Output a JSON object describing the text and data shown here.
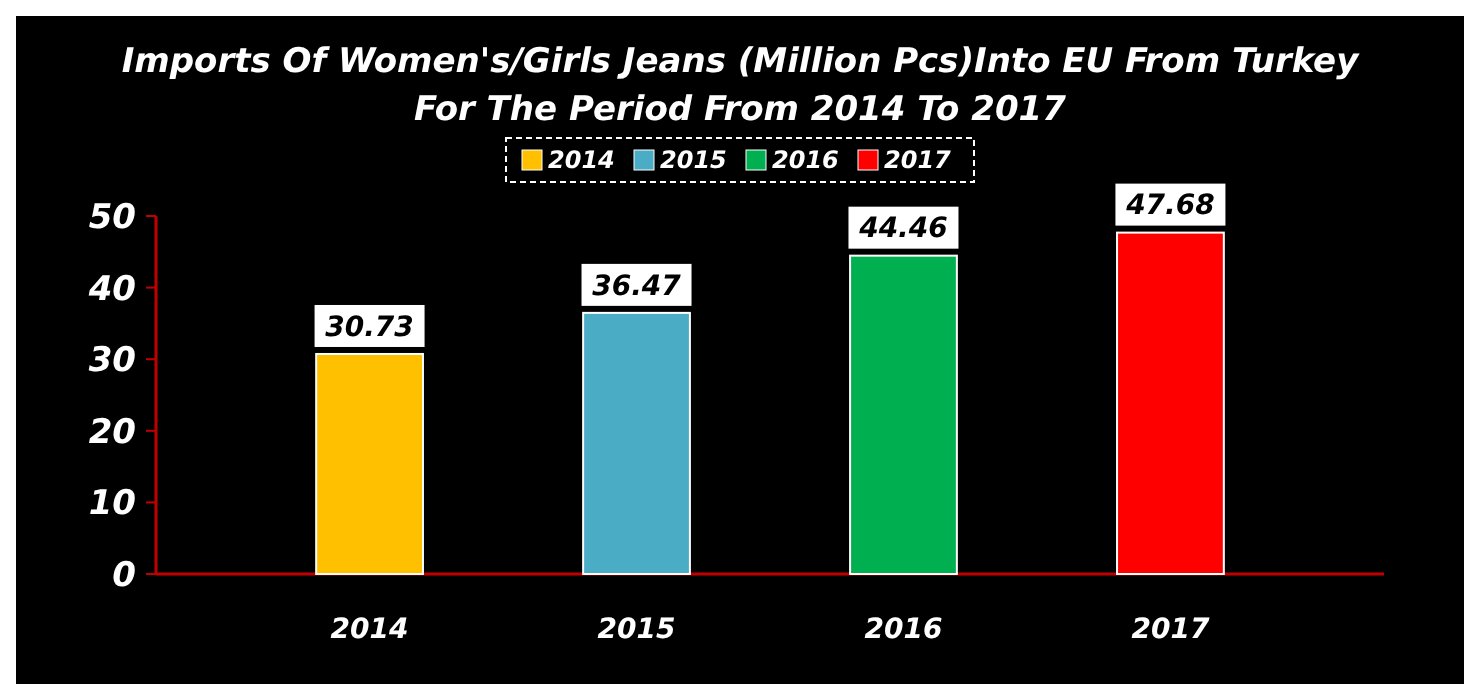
{
  "chart_data": {
    "type": "bar",
    "title": "Imports Of Women's/Girls Jeans (Million Pcs)Into EU From Turkey",
    "subtitle": "For The Period From 2014 To 2017",
    "categories": [
      "2014",
      "2015",
      "2016",
      "2017"
    ],
    "series": [
      {
        "name": "2014",
        "color": "#ffc000",
        "values": [
          30.73,
          null,
          null,
          null
        ]
      },
      {
        "name": "2015",
        "color": "#4bacc6",
        "values": [
          null,
          36.47,
          null,
          null
        ]
      },
      {
        "name": "2016",
        "color": "#00b050",
        "values": [
          null,
          null,
          44.46,
          null
        ]
      },
      {
        "name": "2017",
        "color": "#ff0000",
        "values": [
          null,
          null,
          null,
          47.68
        ]
      }
    ],
    "ylim": [
      0,
      50
    ],
    "yticks": [
      0,
      10,
      20,
      30,
      40,
      50
    ],
    "grid": false,
    "legend": "top",
    "data_labels": true
  }
}
